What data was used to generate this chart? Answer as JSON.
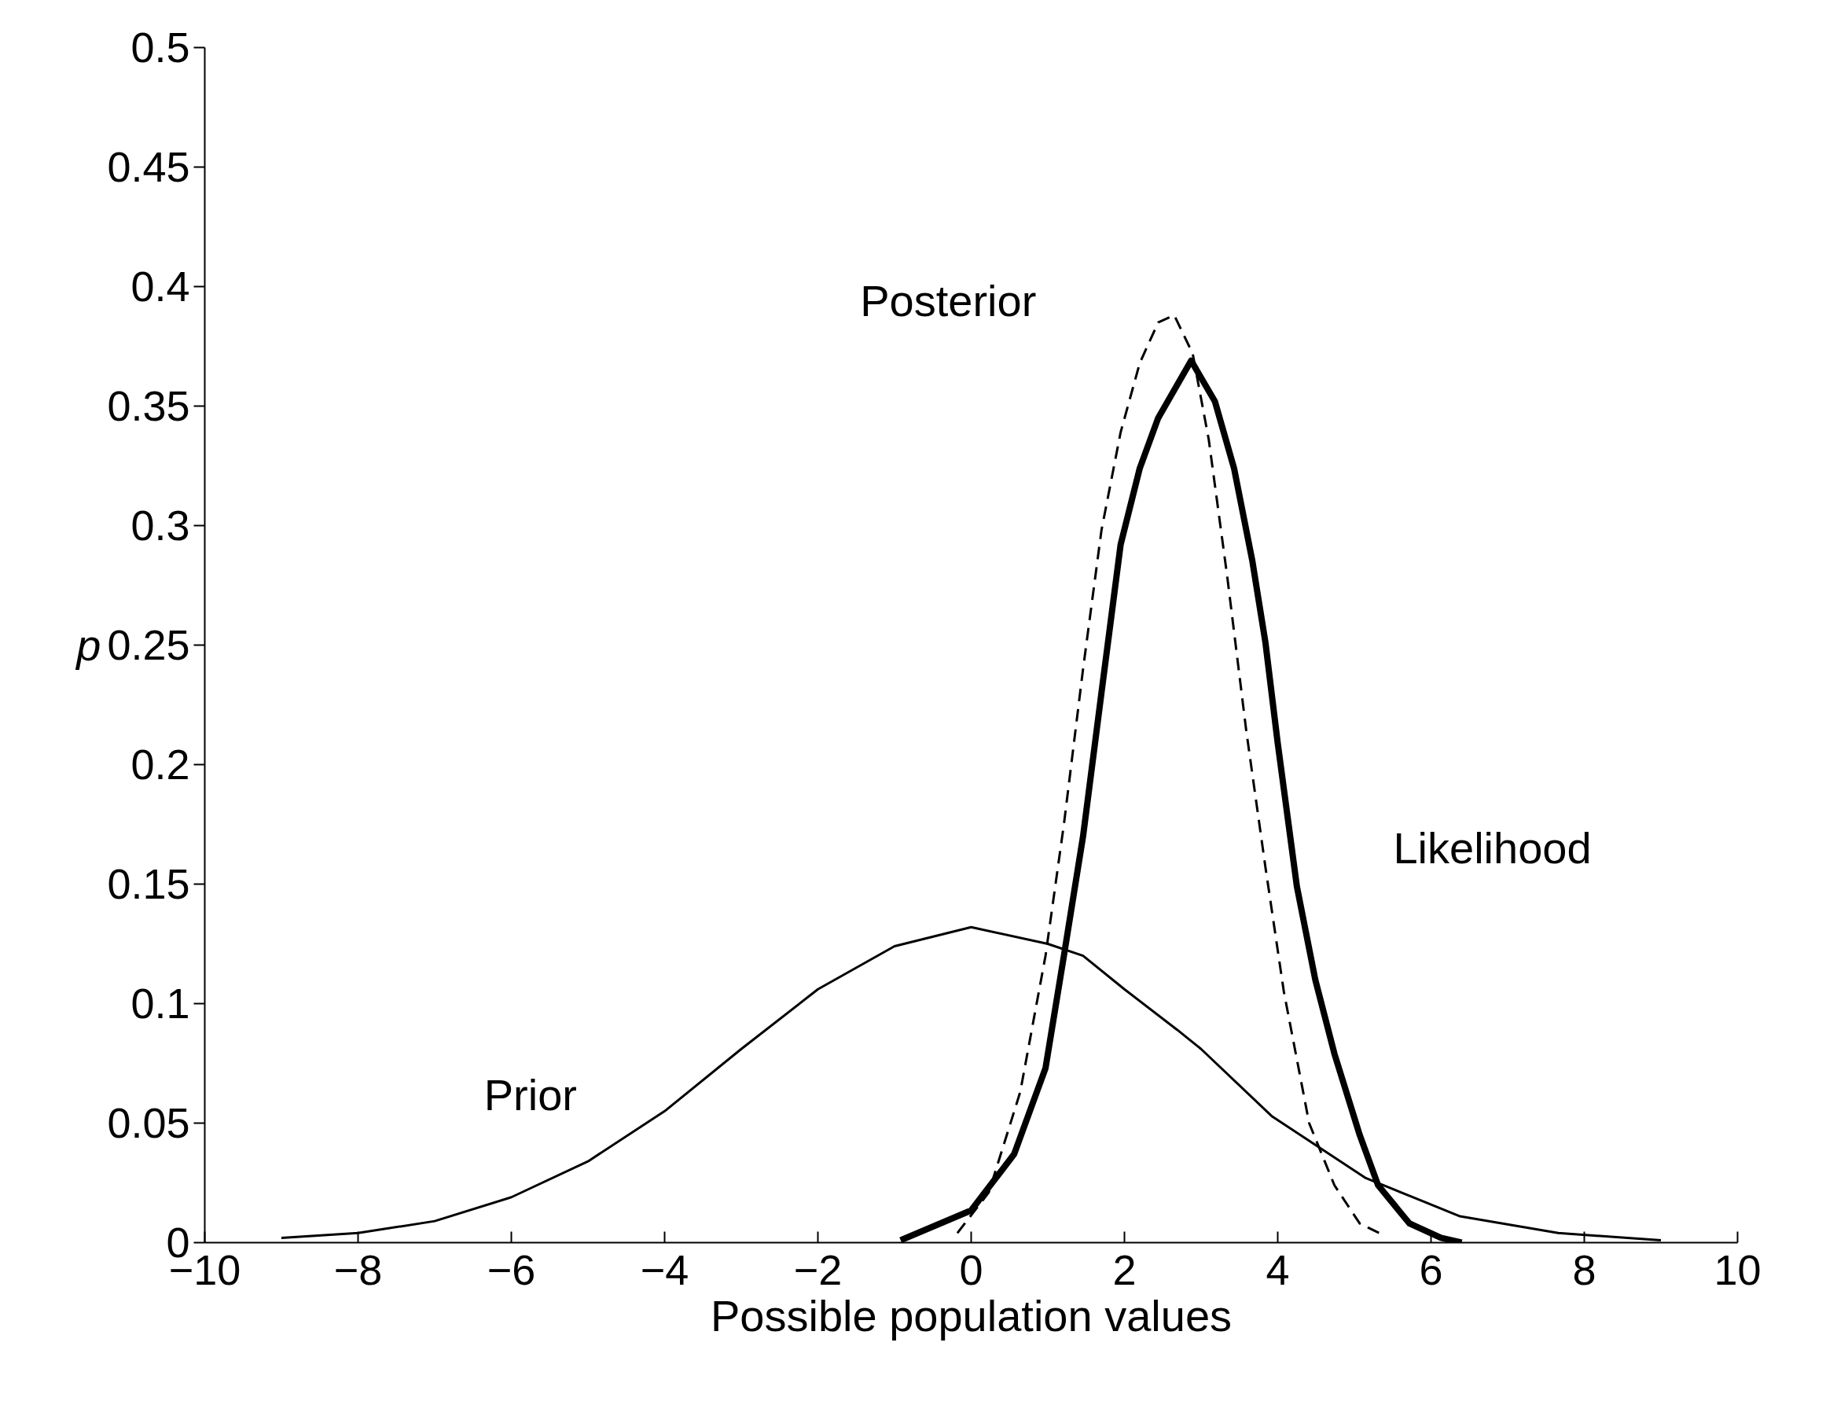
{
  "chart_data": {
    "type": "line",
    "xlabel": "Possible population values",
    "ylabel": "p",
    "xlim": [
      -10,
      10
    ],
    "ylim": [
      0,
      0.5
    ],
    "xticks": [
      {
        "value": -10,
        "label": "−10"
      },
      {
        "value": -8,
        "label": "−8"
      },
      {
        "value": -6,
        "label": "−6"
      },
      {
        "value": -4,
        "label": "−4"
      },
      {
        "value": -2,
        "label": "−2"
      },
      0,
      2,
      4,
      6,
      8,
      10
    ],
    "yticks": [
      0,
      0.05,
      0.1,
      0.15,
      0.2,
      0.25,
      0.3,
      0.35,
      0.4,
      0.45,
      0.5
    ],
    "grid": false,
    "series": [
      {
        "name": "Prior",
        "color": "#000000",
        "line_style": "solid",
        "x": [
          -9,
          -8,
          -7,
          -6,
          -5,
          -4,
          -3,
          -2,
          -1,
          0,
          1,
          1.46,
          2,
          2.69,
          3,
          3.92,
          5.15,
          6.38,
          7.66,
          9
        ],
        "values": [
          0.002,
          0.004,
          0.009,
          0.019,
          0.034,
          0.055,
          0.081,
          0.106,
          0.124,
          0.132,
          0.125,
          0.12,
          0.106,
          0.089,
          0.081,
          0.053,
          0.027,
          0.011,
          0.004,
          0.001
        ]
      },
      {
        "name": "Likelihood",
        "color": "#000000",
        "line_style": "solid",
        "x": [
          -0.92,
          0,
          0.56,
          0.97,
          1.21,
          1.46,
          1.7,
          1.95,
          2.2,
          2.44,
          2.87,
          3.18,
          3.43,
          3.67,
          3.84,
          4.0,
          4.25,
          4.49,
          4.74,
          5.07,
          5.31,
          5.72,
          6.13,
          6.4
        ],
        "values": [
          0.001,
          0.0135,
          0.037,
          0.073,
          0.12,
          0.17,
          0.23,
          0.292,
          0.324,
          0.345,
          0.369,
          0.352,
          0.324,
          0.285,
          0.251,
          0.209,
          0.149,
          0.11,
          0.079,
          0.045,
          0.024,
          0.008,
          0.002,
          0
        ]
      },
      {
        "name": "Posterior",
        "color": "#000000",
        "line_style": "dashed",
        "x": [
          -0.18,
          0.23,
          0.64,
          0.97,
          1.21,
          1.46,
          1.7,
          1.95,
          2.2,
          2.44,
          2.65,
          2.89,
          3.1,
          3.34,
          3.59,
          3.84,
          4.08,
          4.41,
          4.74,
          5.07,
          5.39
        ],
        "values": [
          0.004,
          0.021,
          0.063,
          0.12,
          0.175,
          0.24,
          0.298,
          0.339,
          0.368,
          0.385,
          0.388,
          0.372,
          0.336,
          0.279,
          0.214,
          0.157,
          0.105,
          0.05,
          0.024,
          0.008,
          0.003
        ]
      }
    ]
  }
}
